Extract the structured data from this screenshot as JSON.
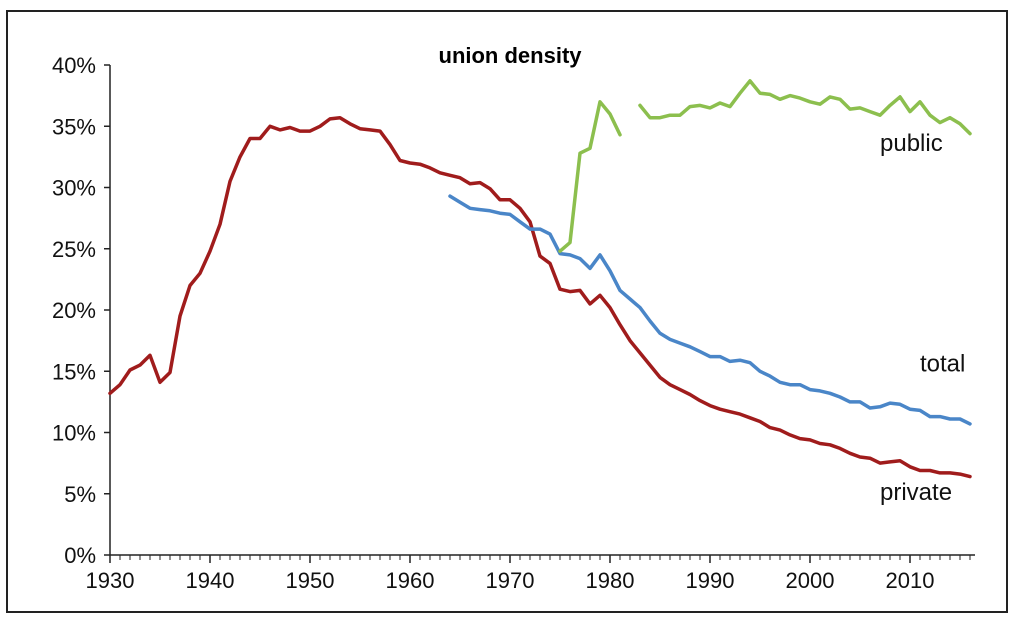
{
  "chart_data": {
    "type": "line",
    "title": "union density",
    "xlabel": "",
    "ylabel": "",
    "xlim": [
      1930,
      2016
    ],
    "ylim": [
      0,
      40
    ],
    "x_ticks": [
      "1930",
      "1940",
      "1950",
      "1960",
      "1970",
      "1980",
      "1990",
      "2000",
      "2010"
    ],
    "y_ticks": [
      "0%",
      "5%",
      "10%",
      "15%",
      "20%",
      "25%",
      "30%",
      "35%",
      "40%"
    ],
    "grid": false,
    "legend": "none",
    "series": [
      {
        "name": "private",
        "color": "#a01c1c",
        "points": [
          [
            1930,
            13.2
          ],
          [
            1931,
            13.9
          ],
          [
            1932,
            15.1
          ],
          [
            1933,
            15.5
          ],
          [
            1934,
            16.3
          ],
          [
            1935,
            14.1
          ],
          [
            1936,
            14.9
          ],
          [
            1937,
            19.5
          ],
          [
            1938,
            22.0
          ],
          [
            1939,
            23.0
          ],
          [
            1940,
            24.8
          ],
          [
            1941,
            27.0
          ],
          [
            1942,
            30.5
          ],
          [
            1943,
            32.5
          ],
          [
            1944,
            34.0
          ],
          [
            1945,
            34.0
          ],
          [
            1946,
            35.0
          ],
          [
            1947,
            34.7
          ],
          [
            1948,
            34.9
          ],
          [
            1949,
            34.6
          ],
          [
            1950,
            34.6
          ],
          [
            1951,
            35.0
          ],
          [
            1952,
            35.6
          ],
          [
            1953,
            35.7
          ],
          [
            1954,
            35.2
          ],
          [
            1955,
            34.8
          ],
          [
            1956,
            34.7
          ],
          [
            1957,
            34.6
          ],
          [
            1958,
            33.5
          ],
          [
            1959,
            32.2
          ],
          [
            1960,
            32.0
          ],
          [
            1961,
            31.9
          ],
          [
            1962,
            31.6
          ],
          [
            1963,
            31.2
          ],
          [
            1964,
            31.0
          ],
          [
            1965,
            30.8
          ],
          [
            1966,
            30.3
          ],
          [
            1967,
            30.4
          ],
          [
            1968,
            29.9
          ],
          [
            1969,
            29.0
          ],
          [
            1970,
            29.0
          ],
          [
            1971,
            28.3
          ],
          [
            1972,
            27.2
          ],
          [
            1973,
            24.4
          ],
          [
            1974,
            23.8
          ],
          [
            1975,
            21.7
          ],
          [
            1976,
            21.5
          ],
          [
            1977,
            21.6
          ],
          [
            1978,
            20.5
          ],
          [
            1979,
            21.2
          ],
          [
            1980,
            20.2
          ],
          [
            1981,
            18.8
          ],
          [
            1982,
            17.5
          ],
          [
            1983,
            16.5
          ],
          [
            1984,
            15.5
          ],
          [
            1985,
            14.5
          ],
          [
            1986,
            13.9
          ],
          [
            1987,
            13.5
          ],
          [
            1988,
            13.1
          ],
          [
            1989,
            12.6
          ],
          [
            1990,
            12.2
          ],
          [
            1991,
            11.9
          ],
          [
            1992,
            11.7
          ],
          [
            1993,
            11.5
          ],
          [
            1994,
            11.2
          ],
          [
            1995,
            10.9
          ],
          [
            1996,
            10.4
          ],
          [
            1997,
            10.2
          ],
          [
            1998,
            9.8
          ],
          [
            1999,
            9.5
          ],
          [
            2000,
            9.4
          ],
          [
            2001,
            9.1
          ],
          [
            2002,
            9.0
          ],
          [
            2003,
            8.7
          ],
          [
            2004,
            8.3
          ],
          [
            2005,
            8.0
          ],
          [
            2006,
            7.9
          ],
          [
            2007,
            7.5
          ],
          [
            2008,
            7.6
          ],
          [
            2009,
            7.7
          ],
          [
            2010,
            7.2
          ],
          [
            2011,
            6.9
          ],
          [
            2012,
            6.9
          ],
          [
            2013,
            6.7
          ],
          [
            2014,
            6.7
          ],
          [
            2015,
            6.6
          ],
          [
            2016,
            6.4
          ]
        ]
      },
      {
        "name": "total",
        "color": "#4a86c8",
        "points": [
          [
            1964,
            29.3
          ],
          [
            1965,
            28.8
          ],
          [
            1966,
            28.3
          ],
          [
            1967,
            28.2
          ],
          [
            1968,
            28.1
          ],
          [
            1969,
            27.9
          ],
          [
            1970,
            27.8
          ],
          [
            1971,
            27.2
          ],
          [
            1972,
            26.6
          ],
          [
            1973,
            26.6
          ],
          [
            1974,
            26.2
          ],
          [
            1975,
            24.6
          ],
          [
            1976,
            24.5
          ],
          [
            1977,
            24.2
          ],
          [
            1978,
            23.4
          ],
          [
            1979,
            24.5
          ],
          [
            1980,
            23.2
          ],
          [
            1981,
            21.6
          ],
          [
            1982,
            20.9
          ],
          [
            1983,
            20.2
          ],
          [
            1984,
            19.1
          ],
          [
            1985,
            18.1
          ],
          [
            1986,
            17.6
          ],
          [
            1987,
            17.3
          ],
          [
            1988,
            17.0
          ],
          [
            1989,
            16.6
          ],
          [
            1990,
            16.2
          ],
          [
            1991,
            16.2
          ],
          [
            1992,
            15.8
          ],
          [
            1993,
            15.9
          ],
          [
            1994,
            15.7
          ],
          [
            1995,
            15.0
          ],
          [
            1996,
            14.6
          ],
          [
            1997,
            14.1
          ],
          [
            1998,
            13.9
          ],
          [
            1999,
            13.9
          ],
          [
            2000,
            13.5
          ],
          [
            2001,
            13.4
          ],
          [
            2002,
            13.2
          ],
          [
            2003,
            12.9
          ],
          [
            2004,
            12.5
          ],
          [
            2005,
            12.5
          ],
          [
            2006,
            12.0
          ],
          [
            2007,
            12.1
          ],
          [
            2008,
            12.4
          ],
          [
            2009,
            12.3
          ],
          [
            2010,
            11.9
          ],
          [
            2011,
            11.8
          ],
          [
            2012,
            11.3
          ],
          [
            2013,
            11.3
          ],
          [
            2014,
            11.1
          ],
          [
            2015,
            11.1
          ],
          [
            2016,
            10.7
          ]
        ]
      },
      {
        "name": "public",
        "color": "#8cbf4e",
        "segments": [
          [
            [
              1975,
              24.8
            ],
            [
              1976,
              25.5
            ],
            [
              1977,
              32.8
            ],
            [
              1978,
              33.2
            ],
            [
              1979,
              37.0
            ],
            [
              1980,
              36.0
            ],
            [
              1981,
              34.3
            ]
          ],
          [
            [
              1983,
              36.7
            ],
            [
              1984,
              35.7
            ],
            [
              1985,
              35.7
            ],
            [
              1986,
              35.9
            ],
            [
              1987,
              35.9
            ],
            [
              1988,
              36.6
            ],
            [
              1989,
              36.7
            ],
            [
              1990,
              36.5
            ],
            [
              1991,
              36.9
            ],
            [
              1992,
              36.6
            ],
            [
              1993,
              37.7
            ],
            [
              1994,
              38.7
            ],
            [
              1995,
              37.7
            ],
            [
              1996,
              37.6
            ],
            [
              1997,
              37.2
            ],
            [
              1998,
              37.5
            ],
            [
              1999,
              37.3
            ],
            [
              2000,
              37.0
            ],
            [
              2001,
              36.8
            ],
            [
              2002,
              37.4
            ],
            [
              2003,
              37.2
            ],
            [
              2004,
              36.4
            ],
            [
              2005,
              36.5
            ],
            [
              2006,
              36.2
            ],
            [
              2007,
              35.9
            ],
            [
              2008,
              36.7
            ],
            [
              2009,
              37.4
            ],
            [
              2010,
              36.2
            ],
            [
              2011,
              37.0
            ],
            [
              2012,
              35.9
            ],
            [
              2013,
              35.3
            ],
            [
              2014,
              35.7
            ],
            [
              2015,
              35.2
            ],
            [
              2016,
              34.4
            ]
          ]
        ]
      }
    ]
  }
}
